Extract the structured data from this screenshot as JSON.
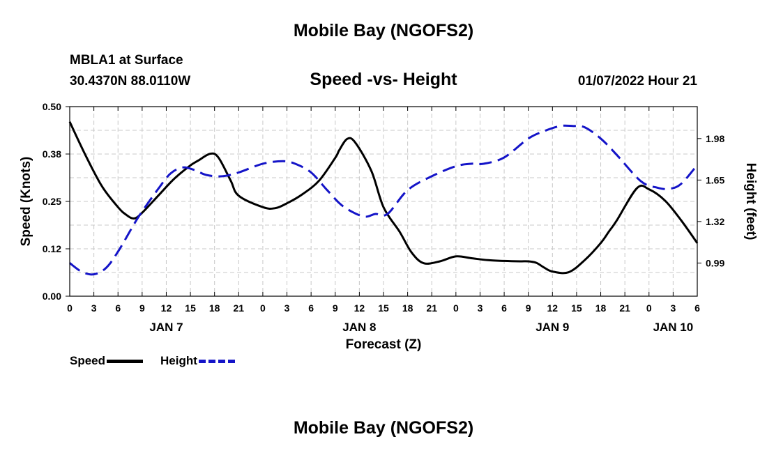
{
  "page": {
    "title_top": "Mobile Bay (NGOFS2)",
    "title_bottom": "Mobile Bay (NGOFS2)",
    "station": "MBLA1 at Surface",
    "coords": "30.4370N  88.0110W",
    "subtitle": "Speed -vs- Height",
    "timestamp": "01/07/2022 Hour 21"
  },
  "legend": {
    "speed_label": "Speed",
    "height_label": "Height"
  },
  "colors": {
    "speed": "#000000",
    "height": "#1414c8",
    "grid": "#c8c8c8"
  },
  "chart_data": {
    "type": "line",
    "title": "Speed -vs- Height",
    "xlabel": "Forecast (Z)",
    "ylabel": "Speed (Knots)",
    "y2label": "Height (feet)",
    "x_unit": "hours since 01/07/2022 00Z",
    "xlim": [
      0,
      78
    ],
    "ylim": [
      0.0,
      0.5
    ],
    "y2lim": [
      0.726,
      2.234
    ],
    "grid": true,
    "legend_position": "bottom-left",
    "x_tick_values": [
      0,
      3,
      6,
      9,
      12,
      15,
      18,
      21,
      24,
      27,
      30,
      33,
      36,
      39,
      42,
      45,
      48,
      51,
      54,
      57,
      60,
      63,
      66,
      69,
      72,
      75,
      78
    ],
    "x_tick_labels": [
      "0",
      "3",
      "6",
      "9",
      "12",
      "15",
      "18",
      "21",
      "0",
      "3",
      "6",
      "9",
      "12",
      "15",
      "18",
      "21",
      "0",
      "3",
      "6",
      "9",
      "12",
      "15",
      "18",
      "21",
      "0",
      "3",
      "6"
    ],
    "date_labels": [
      {
        "x": 12,
        "label": "JAN 7"
      },
      {
        "x": 36,
        "label": "JAN 8"
      },
      {
        "x": 60,
        "label": "JAN 9"
      },
      {
        "x": 75,
        "label": "JAN 10"
      }
    ],
    "y_ticks": [
      "0.00",
      "0.12",
      "0.25",
      "0.38",
      "0.50"
    ],
    "y_tick_values": [
      0.0,
      0.125,
      0.25,
      0.375,
      0.5
    ],
    "y2_ticks": [
      "0.99",
      "1.32",
      "1.65",
      "1.98"
    ],
    "y2_tick_values": [
      0.99,
      1.32,
      1.65,
      1.98
    ],
    "series": [
      {
        "name": "Speed",
        "axis": "left",
        "dash": "solid",
        "x": [
          0,
          2,
          4,
          6,
          7,
          8,
          9,
          11,
          13,
          15,
          16,
          17.5,
          18.5,
          20,
          21,
          24,
          25.5,
          27,
          29,
          31,
          33,
          33.5,
          34.5,
          35.5,
          37.5,
          39,
          41,
          42.5,
          44,
          46,
          48,
          50,
          52,
          54,
          56,
          57,
          58,
          59,
          60,
          62,
          64,
          66,
          67,
          68,
          70.5,
          72,
          74,
          76,
          78
        ],
        "values": [
          0.46,
          0.37,
          0.29,
          0.235,
          0.215,
          0.205,
          0.22,
          0.265,
          0.31,
          0.345,
          0.358,
          0.376,
          0.365,
          0.305,
          0.265,
          0.235,
          0.232,
          0.245,
          0.27,
          0.305,
          0.365,
          0.385,
          0.415,
          0.405,
          0.33,
          0.235,
          0.17,
          0.115,
          0.087,
          0.092,
          0.105,
          0.1,
          0.095,
          0.093,
          0.092,
          0.092,
          0.088,
          0.075,
          0.065,
          0.063,
          0.095,
          0.14,
          0.17,
          0.2,
          0.285,
          0.282,
          0.252,
          0.2,
          0.14
        ]
      },
      {
        "name": "Height",
        "axis": "right",
        "dash": "dashed",
        "x": [
          0,
          1.5,
          3,
          4.5,
          6,
          8,
          9,
          11,
          12.5,
          14,
          15.5,
          17,
          19,
          21,
          24,
          26.5,
          28,
          30,
          32,
          34,
          36.5,
          38,
          39.5,
          42,
          45,
          48,
          50,
          51.5,
          54,
          57,
          59,
          61,
          62.5,
          64,
          66,
          68,
          71,
          73,
          74.5,
          76,
          78
        ],
        "values": [
          0.99,
          0.92,
          0.9,
          0.95,
          1.08,
          1.3,
          1.4,
          1.58,
          1.7,
          1.75,
          1.73,
          1.69,
          1.68,
          1.71,
          1.78,
          1.8,
          1.78,
          1.71,
          1.57,
          1.44,
          1.36,
          1.38,
          1.38,
          1.57,
          1.68,
          1.76,
          1.78,
          1.78,
          1.83,
          1.98,
          2.04,
          2.08,
          2.08,
          2.07,
          1.98,
          1.85,
          1.64,
          1.59,
          1.58,
          1.62,
          1.77
        ]
      }
    ]
  }
}
